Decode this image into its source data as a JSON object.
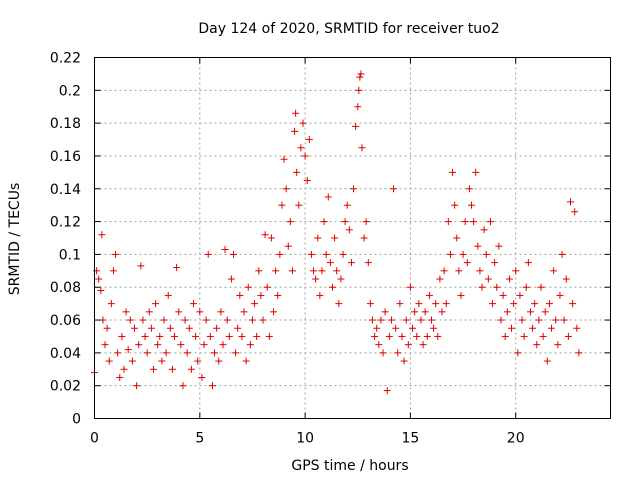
{
  "chart_data": {
    "type": "scatter",
    "title": "Day 124 of 2020, SRMTID for receiver tuo2",
    "xlabel": "GPS time / hours",
    "ylabel": "SRMTID / TECUs",
    "xlim": [
      0,
      24.5
    ],
    "ylim": [
      0,
      0.22
    ],
    "x_ticks": [
      0,
      5,
      10,
      15,
      20
    ],
    "x_tick_labels": [
      "0",
      "5",
      "10",
      "15",
      "20"
    ],
    "y_ticks": [
      0,
      0.02,
      0.04,
      0.06,
      0.08,
      0.1,
      0.12,
      0.14,
      0.16,
      0.18,
      0.2,
      0.22
    ],
    "y_tick_labels": [
      "0",
      "0.02",
      "0.04",
      "0.06",
      "0.08",
      "0.1",
      "0.12",
      "0.14",
      "0.16",
      "0.18",
      "0.2",
      "0.22"
    ],
    "grid": true,
    "marker": "+",
    "color": "#e00000",
    "series": [
      {
        "name": "SRMTID",
        "points": [
          [
            0.0,
            0.028
          ],
          [
            0.1,
            0.09
          ],
          [
            0.2,
            0.085
          ],
          [
            0.3,
            0.078
          ],
          [
            0.35,
            0.112
          ],
          [
            0.4,
            0.06
          ],
          [
            0.5,
            0.045
          ],
          [
            0.6,
            0.055
          ],
          [
            0.7,
            0.035
          ],
          [
            0.8,
            0.07
          ],
          [
            0.9,
            0.09
          ],
          [
            1.0,
            0.1
          ],
          [
            1.1,
            0.04
          ],
          [
            1.2,
            0.025
          ],
          [
            1.3,
            0.05
          ],
          [
            1.4,
            0.03
          ],
          [
            1.5,
            0.065
          ],
          [
            1.6,
            0.042
          ],
          [
            1.7,
            0.06
          ],
          [
            1.8,
            0.035
          ],
          [
            1.9,
            0.055
          ],
          [
            2.0,
            0.02
          ],
          [
            2.1,
            0.045
          ],
          [
            2.2,
            0.093
          ],
          [
            2.3,
            0.06
          ],
          [
            2.4,
            0.05
          ],
          [
            2.5,
            0.04
          ],
          [
            2.6,
            0.065
          ],
          [
            2.7,
            0.055
          ],
          [
            2.8,
            0.03
          ],
          [
            2.9,
            0.07
          ],
          [
            3.0,
            0.045
          ],
          [
            3.1,
            0.05
          ],
          [
            3.2,
            0.035
          ],
          [
            3.3,
            0.06
          ],
          [
            3.4,
            0.04
          ],
          [
            3.5,
            0.075
          ],
          [
            3.6,
            0.055
          ],
          [
            3.7,
            0.03
          ],
          [
            3.8,
            0.05
          ],
          [
            3.9,
            0.092
          ],
          [
            4.0,
            0.065
          ],
          [
            4.1,
            0.045
          ],
          [
            4.2,
            0.02
          ],
          [
            4.3,
            0.06
          ],
          [
            4.4,
            0.04
          ],
          [
            4.5,
            0.055
          ],
          [
            4.6,
            0.03
          ],
          [
            4.7,
            0.07
          ],
          [
            4.8,
            0.05
          ],
          [
            4.9,
            0.035
          ],
          [
            5.0,
            0.065
          ],
          [
            5.1,
            0.025
          ],
          [
            5.2,
            0.045
          ],
          [
            5.3,
            0.06
          ],
          [
            5.4,
            0.1
          ],
          [
            5.5,
            0.05
          ],
          [
            5.6,
            0.02
          ],
          [
            5.7,
            0.04
          ],
          [
            5.8,
            0.055
          ],
          [
            5.9,
            0.035
          ],
          [
            6.0,
            0.065
          ],
          [
            6.1,
            0.045
          ],
          [
            6.2,
            0.103
          ],
          [
            6.3,
            0.06
          ],
          [
            6.4,
            0.05
          ],
          [
            6.5,
            0.085
          ],
          [
            6.6,
            0.1
          ],
          [
            6.7,
            0.04
          ],
          [
            6.8,
            0.055
          ],
          [
            6.9,
            0.075
          ],
          [
            7.0,
            0.05
          ],
          [
            7.1,
            0.065
          ],
          [
            7.2,
            0.035
          ],
          [
            7.3,
            0.08
          ],
          [
            7.4,
            0.045
          ],
          [
            7.5,
            0.06
          ],
          [
            7.6,
            0.07
          ],
          [
            7.7,
            0.05
          ],
          [
            7.8,
            0.09
          ],
          [
            7.9,
            0.075
          ],
          [
            8.0,
            0.06
          ],
          [
            8.1,
            0.112
          ],
          [
            8.2,
            0.08
          ],
          [
            8.3,
            0.05
          ],
          [
            8.4,
            0.11
          ],
          [
            8.5,
            0.065
          ],
          [
            8.6,
            0.09
          ],
          [
            8.7,
            0.075
          ],
          [
            8.8,
            0.1
          ],
          [
            8.9,
            0.13
          ],
          [
            9.0,
            0.158
          ],
          [
            9.1,
            0.14
          ],
          [
            9.2,
            0.105
          ],
          [
            9.3,
            0.12
          ],
          [
            9.4,
            0.09
          ],
          [
            9.5,
            0.175
          ],
          [
            9.55,
            0.186
          ],
          [
            9.6,
            0.15
          ],
          [
            9.7,
            0.13
          ],
          [
            9.8,
            0.165
          ],
          [
            9.9,
            0.18
          ],
          [
            10.0,
            0.16
          ],
          [
            10.1,
            0.145
          ],
          [
            10.2,
            0.17
          ],
          [
            10.3,
            0.1
          ],
          [
            10.4,
            0.09
          ],
          [
            10.5,
            0.085
          ],
          [
            10.6,
            0.11
          ],
          [
            10.7,
            0.075
          ],
          [
            10.8,
            0.09
          ],
          [
            10.9,
            0.12
          ],
          [
            11.0,
            0.1
          ],
          [
            11.1,
            0.135
          ],
          [
            11.2,
            0.095
          ],
          [
            11.3,
            0.08
          ],
          [
            11.4,
            0.11
          ],
          [
            11.5,
            0.09
          ],
          [
            11.6,
            0.07
          ],
          [
            11.7,
            0.085
          ],
          [
            11.8,
            0.1
          ],
          [
            11.9,
            0.12
          ],
          [
            12.0,
            0.13
          ],
          [
            12.1,
            0.115
          ],
          [
            12.2,
            0.095
          ],
          [
            12.3,
            0.14
          ],
          [
            12.4,
            0.178
          ],
          [
            12.5,
            0.19
          ],
          [
            12.55,
            0.2
          ],
          [
            12.6,
            0.208
          ],
          [
            12.65,
            0.21
          ],
          [
            12.7,
            0.165
          ],
          [
            12.8,
            0.11
          ],
          [
            12.9,
            0.12
          ],
          [
            13.0,
            0.095
          ],
          [
            13.1,
            0.07
          ],
          [
            13.2,
            0.06
          ],
          [
            13.3,
            0.05
          ],
          [
            13.4,
            0.055
          ],
          [
            13.5,
            0.045
          ],
          [
            13.6,
            0.06
          ],
          [
            13.7,
            0.04
          ],
          [
            13.8,
            0.065
          ],
          [
            13.9,
            0.017
          ],
          [
            14.0,
            0.05
          ],
          [
            14.1,
            0.06
          ],
          [
            14.2,
            0.14
          ],
          [
            14.3,
            0.055
          ],
          [
            14.4,
            0.04
          ],
          [
            14.5,
            0.07
          ],
          [
            14.6,
            0.05
          ],
          [
            14.7,
            0.035
          ],
          [
            14.8,
            0.06
          ],
          [
            14.9,
            0.045
          ],
          [
            15.0,
            0.08
          ],
          [
            15.1,
            0.055
          ],
          [
            15.2,
            0.065
          ],
          [
            15.3,
            0.05
          ],
          [
            15.4,
            0.07
          ],
          [
            15.5,
            0.06
          ],
          [
            15.6,
            0.045
          ],
          [
            15.7,
            0.065
          ],
          [
            15.8,
            0.05
          ],
          [
            15.9,
            0.075
          ],
          [
            16.0,
            0.06
          ],
          [
            16.1,
            0.055
          ],
          [
            16.2,
            0.07
          ],
          [
            16.3,
            0.05
          ],
          [
            16.4,
            0.085
          ],
          [
            16.5,
            0.065
          ],
          [
            16.6,
            0.09
          ],
          [
            16.7,
            0.07
          ],
          [
            16.8,
            0.12
          ],
          [
            16.9,
            0.1
          ],
          [
            17.0,
            0.15
          ],
          [
            17.1,
            0.13
          ],
          [
            17.2,
            0.11
          ],
          [
            17.3,
            0.09
          ],
          [
            17.4,
            0.075
          ],
          [
            17.5,
            0.1
          ],
          [
            17.6,
            0.12
          ],
          [
            17.7,
            0.095
          ],
          [
            17.8,
            0.14
          ],
          [
            17.9,
            0.13
          ],
          [
            18.0,
            0.12
          ],
          [
            18.1,
            0.15
          ],
          [
            18.2,
            0.105
          ],
          [
            18.3,
            0.09
          ],
          [
            18.4,
            0.08
          ],
          [
            18.5,
            0.115
          ],
          [
            18.6,
            0.1
          ],
          [
            18.7,
            0.085
          ],
          [
            18.8,
            0.12
          ],
          [
            18.9,
            0.07
          ],
          [
            19.0,
            0.095
          ],
          [
            19.1,
            0.08
          ],
          [
            19.2,
            0.105
          ],
          [
            19.3,
            0.06
          ],
          [
            19.4,
            0.075
          ],
          [
            19.5,
            0.05
          ],
          [
            19.6,
            0.065
          ],
          [
            19.7,
            0.085
          ],
          [
            19.8,
            0.055
          ],
          [
            19.9,
            0.07
          ],
          [
            20.0,
            0.09
          ],
          [
            20.1,
            0.04
          ],
          [
            20.2,
            0.075
          ],
          [
            20.3,
            0.06
          ],
          [
            20.4,
            0.05
          ],
          [
            20.5,
            0.08
          ],
          [
            20.6,
            0.095
          ],
          [
            20.7,
            0.065
          ],
          [
            20.8,
            0.055
          ],
          [
            20.9,
            0.07
          ],
          [
            21.0,
            0.045
          ],
          [
            21.1,
            0.06
          ],
          [
            21.2,
            0.08
          ],
          [
            21.3,
            0.05
          ],
          [
            21.4,
            0.065
          ],
          [
            21.5,
            0.035
          ],
          [
            21.6,
            0.07
          ],
          [
            21.7,
            0.055
          ],
          [
            21.8,
            0.09
          ],
          [
            21.9,
            0.06
          ],
          [
            22.0,
            0.045
          ],
          [
            22.1,
            0.075
          ],
          [
            22.2,
            0.1
          ],
          [
            22.3,
            0.06
          ],
          [
            22.4,
            0.085
          ],
          [
            22.5,
            0.05
          ],
          [
            22.6,
            0.132
          ],
          [
            22.7,
            0.07
          ],
          [
            22.8,
            0.126
          ],
          [
            22.9,
            0.055
          ],
          [
            23.0,
            0.04
          ]
        ]
      }
    ]
  }
}
